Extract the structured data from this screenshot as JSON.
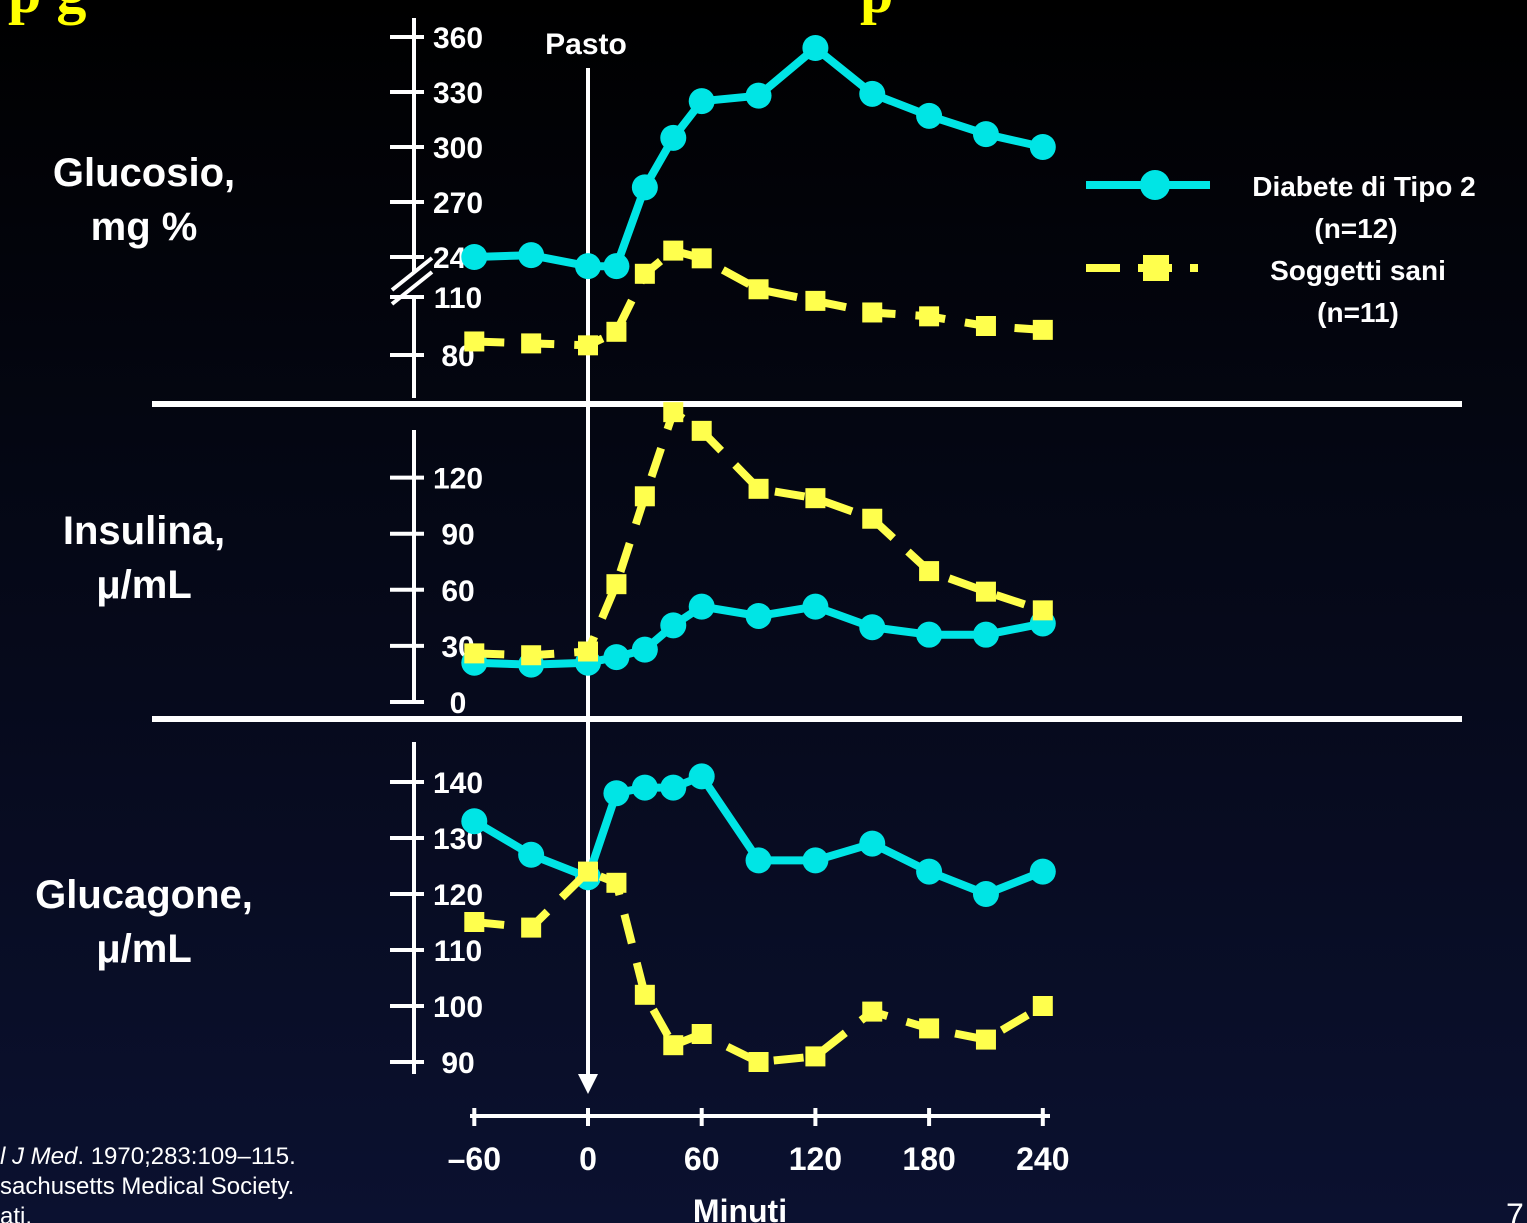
{
  "title_fragments": [
    "p g",
    "p"
  ],
  "page_number": "7",
  "colors": {
    "diabetes": "#00e5e5",
    "healthy": "#ffff4d",
    "axis": "#ffffff",
    "title": "#ffff00"
  },
  "meal_marker": {
    "label": "Pasto",
    "x": 0
  },
  "x_axis": {
    "label": "Minuti",
    "ticks": [
      "–60",
      "0",
      "60",
      "120",
      "180",
      "240"
    ],
    "tick_values": [
      -60,
      0,
      60,
      120,
      180,
      240
    ]
  },
  "legend": {
    "diabetes": {
      "line1": "Diabete di Tipo 2",
      "line2": "(n=12)"
    },
    "healthy": {
      "line1": "Soggetti sani",
      "line2": "(n=11)"
    }
  },
  "citation": {
    "line1_italic": "l J Med",
    "line1_rest": ". 1970;283:109–115.",
    "line2": "sachusetts Medical Society.",
    "line3": "ati."
  },
  "chart_data": [
    {
      "type": "line",
      "panel": "glucose",
      "ylabel": [
        "Glucosio,",
        "mg %"
      ],
      "axis_break": true,
      "upper_ticks": [
        "360",
        "330",
        "300",
        "270",
        "240"
      ],
      "lower_ticks": [
        "110",
        "80"
      ],
      "series": [
        {
          "name": "Diabete di Tipo 2 (n=12)",
          "x": [
            -60,
            -30,
            0,
            15,
            30,
            45,
            60,
            90,
            120,
            150,
            180,
            210,
            240
          ],
          "values": [
            240,
            241,
            235,
            235,
            278,
            305,
            325,
            328,
            354,
            329,
            317,
            307,
            300
          ]
        },
        {
          "name": "Soggetti sani (n=11)",
          "x": [
            -60,
            -30,
            0,
            15,
            30,
            45,
            60,
            90,
            120,
            150,
            180,
            210,
            240
          ],
          "values": [
            87,
            86,
            85,
            92,
            122,
            134,
            130,
            114,
            108,
            102,
            100,
            95,
            93
          ]
        }
      ]
    },
    {
      "type": "line",
      "panel": "insulin",
      "ylabel": [
        "Insulina,",
        "μ/mL"
      ],
      "ylim": [
        0,
        150
      ],
      "yticks": [
        "120",
        "90",
        "60",
        "30",
        "0"
      ],
      "series": [
        {
          "name": "Diabete di Tipo 2 (n=12)",
          "x": [
            -60,
            -30,
            0,
            15,
            30,
            45,
            60,
            90,
            120,
            150,
            180,
            210,
            240
          ],
          "values": [
            21,
            20,
            21,
            24,
            28,
            41,
            51,
            46,
            51,
            40,
            36,
            36,
            42
          ]
        },
        {
          "name": "Soggetti sani (n=11)",
          "x": [
            -60,
            -30,
            0,
            15,
            30,
            45,
            60,
            90,
            120,
            150,
            180,
            210,
            240
          ],
          "values": [
            26,
            25,
            27,
            63,
            110,
            155,
            145,
            114,
            109,
            98,
            70,
            59,
            49
          ]
        }
      ]
    },
    {
      "type": "line",
      "panel": "glucagon",
      "ylabel": [
        "Glucagone,",
        "μ/mL"
      ],
      "ylim": [
        85,
        150
      ],
      "yticks": [
        "140",
        "130",
        "120",
        "110",
        "100",
        "90"
      ],
      "series": [
        {
          "name": "Diabete di Tipo 2 (n=12)",
          "x": [
            -60,
            -30,
            0,
            15,
            30,
            45,
            60,
            90,
            120,
            150,
            180,
            210,
            240
          ],
          "values": [
            133,
            127,
            123,
            138,
            139,
            139,
            141,
            126,
            126,
            129,
            124,
            120,
            124
          ]
        },
        {
          "name": "Soggetti sani (n=11)",
          "x": [
            -60,
            -30,
            0,
            15,
            30,
            45,
            60,
            90,
            120,
            150,
            180,
            210,
            240
          ],
          "values": [
            115,
            114,
            124,
            122,
            102,
            93,
            95,
            90,
            91,
            99,
            96,
            94,
            100
          ]
        }
      ]
    }
  ]
}
